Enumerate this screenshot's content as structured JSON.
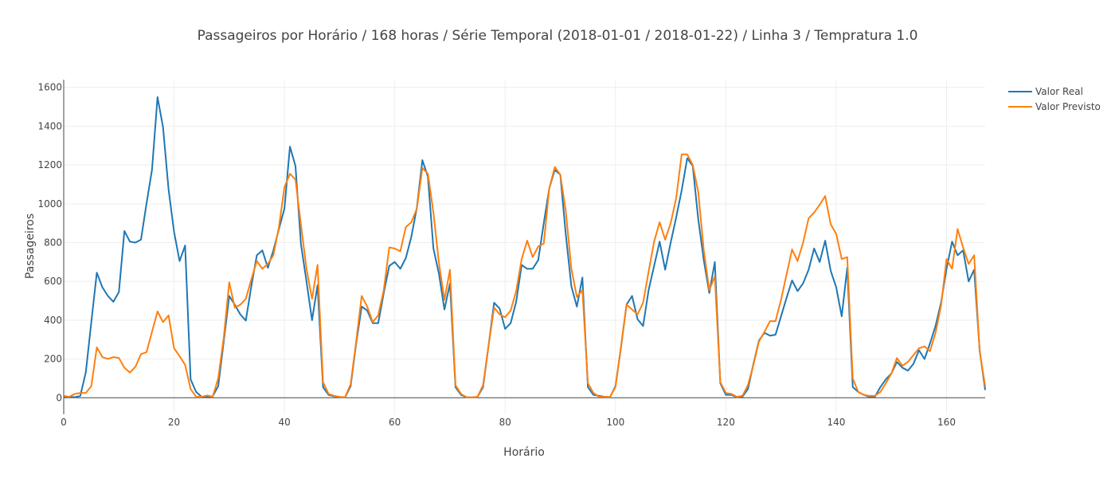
{
  "chart_data": {
    "type": "line",
    "title": "Passageiros por Horário / 168 horas / Série Temporal (2018-01-01 / 2018-01-22) / Linha 3 / Tempratura 1.0",
    "xlabel": "Horário",
    "ylabel": "Passageiros",
    "xlim": [
      0,
      167
    ],
    "ylim": [
      -85,
      1640
    ],
    "xticks": [
      0,
      20,
      40,
      60,
      80,
      100,
      120,
      140,
      160
    ],
    "yticks": [
      0,
      200,
      400,
      600,
      800,
      1000,
      1200,
      1400,
      1600
    ],
    "grid": true,
    "legend_position": "top-right",
    "x": [
      0,
      1,
      2,
      3,
      4,
      5,
      6,
      7,
      8,
      9,
      10,
      11,
      12,
      13,
      14,
      15,
      16,
      17,
      18,
      19,
      20,
      21,
      22,
      23,
      24,
      25,
      26,
      27,
      28,
      29,
      30,
      31,
      32,
      33,
      34,
      35,
      36,
      37,
      38,
      39,
      40,
      41,
      42,
      43,
      44,
      45,
      46,
      47,
      48,
      49,
      50,
      51,
      52,
      53,
      54,
      55,
      56,
      57,
      58,
      59,
      60,
      61,
      62,
      63,
      64,
      65,
      66,
      67,
      68,
      69,
      70,
      71,
      72,
      73,
      74,
      75,
      76,
      77,
      78,
      79,
      80,
      81,
      82,
      83,
      84,
      85,
      86,
      87,
      88,
      89,
      90,
      91,
      92,
      93,
      94,
      95,
      96,
      97,
      98,
      99,
      100,
      101,
      102,
      103,
      104,
      105,
      106,
      107,
      108,
      109,
      110,
      111,
      112,
      113,
      114,
      115,
      116,
      117,
      118,
      119,
      120,
      121,
      122,
      123,
      124,
      125,
      126,
      127,
      128,
      129,
      130,
      131,
      132,
      133,
      134,
      135,
      136,
      137,
      138,
      139,
      140,
      141,
      142,
      143,
      144,
      145,
      146,
      147,
      148,
      149,
      150,
      151,
      152,
      153,
      154,
      155,
      156,
      157,
      158,
      159,
      160,
      161,
      162,
      163,
      164,
      165,
      166,
      167
    ],
    "series": [
      {
        "name": "Valor Real",
        "color": "#1f77b4",
        "values": [
          2,
          5,
          3,
          10,
          130,
          390,
          645,
          570,
          525,
          495,
          545,
          860,
          805,
          800,
          815,
          1000,
          1175,
          1550,
          1395,
          1075,
          855,
          705,
          785,
          95,
          30,
          5,
          3,
          8,
          60,
          290,
          525,
          480,
          430,
          398,
          575,
          735,
          760,
          670,
          760,
          870,
          975,
          1295,
          1195,
          790,
          600,
          400,
          580,
          55,
          15,
          8,
          4,
          2,
          60,
          280,
          470,
          450,
          385,
          385,
          540,
          680,
          700,
          665,
          720,
          830,
          980,
          1225,
          1140,
          770,
          640,
          455,
          590,
          55,
          15,
          3,
          2,
          5,
          55,
          270,
          490,
          460,
          355,
          385,
          495,
          685,
          665,
          665,
          710,
          900,
          1080,
          1175,
          1150,
          840,
          575,
          470,
          620,
          55,
          15,
          10,
          5,
          3,
          60,
          260,
          480,
          525,
          405,
          370,
          555,
          680,
          805,
          660,
          800,
          930,
          1070,
          1235,
          1195,
          920,
          710,
          540,
          700,
          75,
          15,
          15,
          3,
          5,
          45,
          175,
          295,
          335,
          320,
          325,
          420,
          515,
          605,
          550,
          590,
          660,
          770,
          700,
          810,
          655,
          570,
          420,
          670,
          55,
          30,
          15,
          5,
          5,
          55,
          95,
          125,
          185,
          155,
          140,
          175,
          245,
          200,
          280,
          370,
          490,
          665,
          805,
          735,
          760,
          600,
          660,
          245,
          40
        ]
      },
      {
        "name": "Valor Previsto",
        "color": "#ff7f0e",
        "values": [
          10,
          5,
          20,
          25,
          25,
          60,
          260,
          210,
          200,
          210,
          205,
          155,
          130,
          160,
          225,
          235,
          340,
          445,
          390,
          425,
          255,
          215,
          170,
          45,
          5,
          5,
          12,
          5,
          100,
          310,
          595,
          465,
          480,
          510,
          610,
          705,
          665,
          690,
          735,
          880,
          1085,
          1155,
          1125,
          890,
          665,
          510,
          685,
          80,
          20,
          10,
          5,
          3,
          70,
          290,
          525,
          470,
          390,
          425,
          555,
          775,
          770,
          755,
          880,
          905,
          975,
          1185,
          1155,
          955,
          695,
          505,
          660,
          65,
          20,
          3,
          2,
          5,
          65,
          270,
          465,
          430,
          415,
          450,
          550,
          715,
          810,
          725,
          780,
          795,
          1080,
          1190,
          1150,
          960,
          665,
          520,
          555,
          75,
          25,
          5,
          5,
          5,
          55,
          265,
          480,
          455,
          430,
          490,
          650,
          805,
          905,
          815,
          900,
          1030,
          1255,
          1255,
          1200,
          1060,
          760,
          555,
          625,
          80,
          25,
          20,
          5,
          10,
          65,
          170,
          290,
          340,
          395,
          395,
          505,
          635,
          765,
          705,
          800,
          925,
          955,
          995,
          1040,
          895,
          845,
          715,
          725,
          100,
          30,
          15,
          10,
          10,
          30,
          75,
          125,
          205,
          165,
          185,
          220,
          255,
          265,
          240,
          335,
          475,
          715,
          665,
          870,
          775,
          690,
          735,
          240,
          60
        ]
      }
    ]
  }
}
